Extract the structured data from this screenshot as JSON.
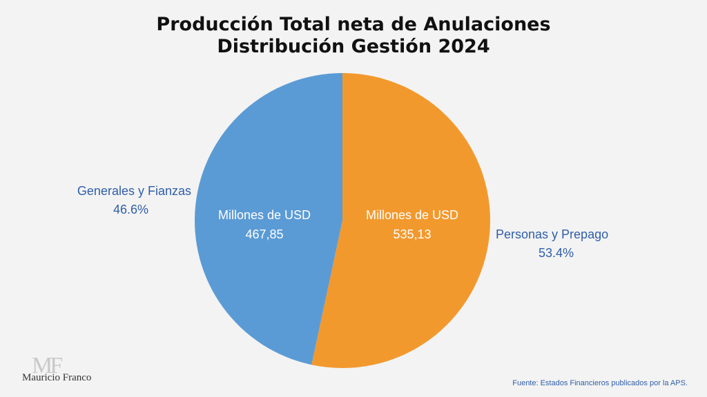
{
  "chart_data": {
    "type": "pie",
    "title": "Producción Total neta de Anulaciones",
    "subtitle": "Distribución Gestión 2024",
    "unit_label": "Millones de USD",
    "slices": [
      {
        "name": "Personas y Prepago",
        "value": "535,13",
        "value_num": 535.13,
        "percent": "53.4%",
        "color": "#f2992e"
      },
      {
        "name": "Generales y Fianzas",
        "value": "467,85",
        "value_num": 467.85,
        "percent": "46.6%",
        "color": "#5b9bd5"
      }
    ],
    "category_label_color": "#2f5ea8"
  },
  "footer": {
    "source": "Fuente: Estados Financieros publicados por la APS."
  },
  "logo": {
    "mark": "MF",
    "text": "Mauricio Franco"
  }
}
